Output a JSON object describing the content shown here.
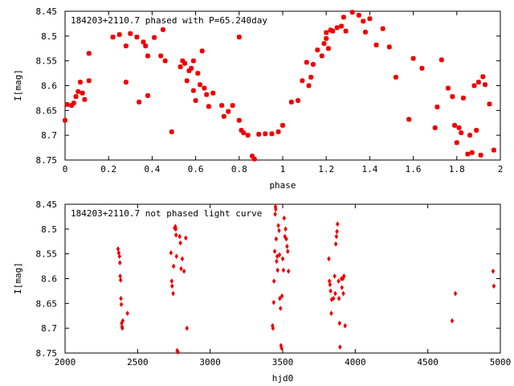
{
  "chart_data": [
    {
      "type": "scatter",
      "title": "184203+2110.7 phased with P=65.240day",
      "xlabel": "phase",
      "ylabel": "I[mag]",
      "xlim": [
        0,
        2
      ],
      "ylim": [
        8.45,
        8.75
      ],
      "y_inverted": true,
      "grid": false,
      "marker_color": "#ee0000",
      "xticks": [
        {
          "v": 0,
          "label": "0"
        },
        {
          "v": 0.2,
          "label": "0.2"
        },
        {
          "v": 0.4,
          "label": "0.4"
        },
        {
          "v": 0.6,
          "label": "0.6"
        },
        {
          "v": 0.8,
          "label": "0.8"
        },
        {
          "v": 1,
          "label": "1"
        },
        {
          "v": 1.2,
          "label": "1.2"
        },
        {
          "v": 1.4,
          "label": "1.4"
        },
        {
          "v": 1.6,
          "label": "1.6"
        },
        {
          "v": 1.8,
          "label": "1.8"
        },
        {
          "v": 2,
          "label": "2"
        }
      ],
      "yticks": [
        {
          "v": 8.45,
          "label": "8.45"
        },
        {
          "v": 8.5,
          "label": "8.5"
        },
        {
          "v": 8.55,
          "label": "8.55"
        },
        {
          "v": 8.6,
          "label": "8.6"
        },
        {
          "v": 8.65,
          "label": "8.65"
        },
        {
          "v": 8.7,
          "label": "8.7"
        },
        {
          "v": 8.75,
          "label": "8.75"
        }
      ],
      "points": [
        [
          0.0,
          8.67
        ],
        [
          0.01,
          8.638
        ],
        [
          0.03,
          8.64
        ],
        [
          0.04,
          8.635
        ],
        [
          0.05,
          8.622
        ],
        [
          0.06,
          8.612
        ],
        [
          0.07,
          8.593
        ],
        [
          0.08,
          8.615
        ],
        [
          0.09,
          8.628
        ],
        [
          0.11,
          8.59
        ],
        [
          0.11,
          8.535
        ],
        [
          0.22,
          8.502
        ],
        [
          0.25,
          8.497
        ],
        [
          0.28,
          8.52
        ],
        [
          0.28,
          8.593
        ],
        [
          0.3,
          8.495
        ],
        [
          0.33,
          8.502
        ],
        [
          0.34,
          8.633
        ],
        [
          0.36,
          8.512
        ],
        [
          0.37,
          8.52
        ],
        [
          0.38,
          8.62
        ],
        [
          0.38,
          8.54
        ],
        [
          0.41,
          8.503
        ],
        [
          0.44,
          8.54
        ],
        [
          0.45,
          8.487
        ],
        [
          0.46,
          8.55
        ],
        [
          0.49,
          8.693
        ],
        [
          0.53,
          8.562
        ],
        [
          0.54,
          8.55
        ],
        [
          0.55,
          8.555
        ],
        [
          0.56,
          8.59
        ],
        [
          0.57,
          8.57
        ],
        [
          0.58,
          8.565
        ],
        [
          0.59,
          8.55
        ],
        [
          0.59,
          8.61
        ],
        [
          0.6,
          8.63
        ],
        [
          0.61,
          8.575
        ],
        [
          0.62,
          8.598
        ],
        [
          0.63,
          8.53
        ],
        [
          0.64,
          8.605
        ],
        [
          0.65,
          8.618
        ],
        [
          0.66,
          8.642
        ],
        [
          0.68,
          8.615
        ],
        [
          0.72,
          8.64
        ],
        [
          0.73,
          8.662
        ],
        [
          0.75,
          8.652
        ],
        [
          0.77,
          8.64
        ],
        [
          0.8,
          8.67
        ],
        [
          0.8,
          8.502
        ],
        [
          0.81,
          8.69
        ],
        [
          0.82,
          8.695
        ],
        [
          0.84,
          8.7
        ],
        [
          0.86,
          8.742
        ],
        [
          0.87,
          8.748
        ],
        [
          0.89,
          8.698
        ],
        [
          0.92,
          8.697
        ],
        [
          0.95,
          8.697
        ],
        [
          0.98,
          8.693
        ],
        [
          1.0,
          8.68
        ],
        [
          1.04,
          8.633
        ],
        [
          1.07,
          8.63
        ],
        [
          1.09,
          8.59
        ],
        [
          1.11,
          8.553
        ],
        [
          1.12,
          8.6
        ],
        [
          1.13,
          8.583
        ],
        [
          1.14,
          8.557
        ],
        [
          1.16,
          8.528
        ],
        [
          1.18,
          8.54
        ],
        [
          1.19,
          8.515
        ],
        [
          1.2,
          8.493
        ],
        [
          1.2,
          8.505
        ],
        [
          1.21,
          8.525
        ],
        [
          1.22,
          8.488
        ],
        [
          1.23,
          8.49
        ],
        [
          1.25,
          8.483
        ],
        [
          1.27,
          8.48
        ],
        [
          1.28,
          8.462
        ],
        [
          1.29,
          8.49
        ],
        [
          1.32,
          8.452
        ],
        [
          1.35,
          8.458
        ],
        [
          1.37,
          8.47
        ],
        [
          1.38,
          8.492
        ],
        [
          1.4,
          8.465
        ],
        [
          1.43,
          8.518
        ],
        [
          1.46,
          8.485
        ],
        [
          1.49,
          8.522
        ],
        [
          1.52,
          8.583
        ],
        [
          1.58,
          8.668
        ],
        [
          1.6,
          8.545
        ],
        [
          1.64,
          8.565
        ],
        [
          1.7,
          8.685
        ],
        [
          1.71,
          8.643
        ],
        [
          1.73,
          8.548
        ],
        [
          1.76,
          8.605
        ],
        [
          1.78,
          8.622
        ],
        [
          1.79,
          8.68
        ],
        [
          1.8,
          8.715
        ],
        [
          1.81,
          8.685
        ],
        [
          1.82,
          8.695
        ],
        [
          1.83,
          8.625
        ],
        [
          1.85,
          8.738
        ],
        [
          1.86,
          8.7
        ],
        [
          1.87,
          8.735
        ],
        [
          1.88,
          8.6
        ],
        [
          1.89,
          8.69
        ],
        [
          1.9,
          8.593
        ],
        [
          1.91,
          8.74
        ],
        [
          1.92,
          8.582
        ],
        [
          1.93,
          8.598
        ],
        [
          1.95,
          8.637
        ],
        [
          1.97,
          8.73
        ]
      ]
    },
    {
      "type": "scatter",
      "title": "184203+2110.7 not phased light curve",
      "xlabel": "hjd0",
      "ylabel": "I[mag]",
      "xlim": [
        2000,
        5000
      ],
      "ylim": [
        8.45,
        8.75
      ],
      "y_inverted": true,
      "grid": false,
      "marker_color": "#ee0000",
      "xticks": [
        {
          "v": 2000,
          "label": "2000"
        },
        {
          "v": 2500,
          "label": "2500"
        },
        {
          "v": 3000,
          "label": "3000"
        },
        {
          "v": 3500,
          "label": "3500"
        },
        {
          "v": 4000,
          "label": "4000"
        },
        {
          "v": 4500,
          "label": "4500"
        },
        {
          "v": 5000,
          "label": "5000"
        }
      ],
      "yticks": [
        {
          "v": 8.45,
          "label": "8.45"
        },
        {
          "v": 8.5,
          "label": "8.5"
        },
        {
          "v": 8.55,
          "label": "8.55"
        },
        {
          "v": 8.6,
          "label": "8.6"
        },
        {
          "v": 8.65,
          "label": "8.65"
        },
        {
          "v": 8.7,
          "label": "8.7"
        },
        {
          "v": 8.75,
          "label": "8.75"
        }
      ],
      "points": [
        [
          2365,
          8.54
        ],
        [
          2370,
          8.548
        ],
        [
          2375,
          8.555
        ],
        [
          2378,
          8.568
        ],
        [
          2380,
          8.595
        ],
        [
          2383,
          8.603
        ],
        [
          2385,
          8.64
        ],
        [
          2388,
          8.652
        ],
        [
          2390,
          8.69
        ],
        [
          2393,
          8.697
        ],
        [
          2395,
          8.7
        ],
        [
          2398,
          8.685
        ],
        [
          2430,
          8.67
        ],
        [
          2730,
          8.548
        ],
        [
          2735,
          8.605
        ],
        [
          2738,
          8.615
        ],
        [
          2745,
          8.63
        ],
        [
          2748,
          8.575
        ],
        [
          2755,
          8.498
        ],
        [
          2760,
          8.495
        ],
        [
          2763,
          8.5
        ],
        [
          2765,
          8.512
        ],
        [
          2768,
          8.555
        ],
        [
          2773,
          8.745
        ],
        [
          2778,
          8.748
        ],
        [
          2790,
          8.515
        ],
        [
          2795,
          8.528
        ],
        [
          2800,
          8.58
        ],
        [
          2808,
          8.56
        ],
        [
          2820,
          8.585
        ],
        [
          2832,
          8.518
        ],
        [
          2840,
          8.7
        ],
        [
          3430,
          8.695
        ],
        [
          3433,
          8.7
        ],
        [
          3438,
          8.648
        ],
        [
          3440,
          8.605
        ],
        [
          3445,
          8.545
        ],
        [
          3448,
          8.47
        ],
        [
          3450,
          8.455
        ],
        [
          3452,
          8.46
        ],
        [
          3455,
          8.52
        ],
        [
          3458,
          8.565
        ],
        [
          3462,
          8.555
        ],
        [
          3465,
          8.583
        ],
        [
          3470,
          8.493
        ],
        [
          3475,
          8.503
        ],
        [
          3478,
          8.552
        ],
        [
          3480,
          8.64
        ],
        [
          3485,
          8.66
        ],
        [
          3488,
          8.735
        ],
        [
          3492,
          8.74
        ],
        [
          3495,
          8.635
        ],
        [
          3500,
          8.56
        ],
        [
          3505,
          8.583
        ],
        [
          3510,
          8.478
        ],
        [
          3515,
          8.515
        ],
        [
          3520,
          8.5
        ],
        [
          3525,
          8.52
        ],
        [
          3530,
          8.535
        ],
        [
          3535,
          8.545
        ],
        [
          3540,
          8.585
        ],
        [
          3818,
          8.56
        ],
        [
          3822,
          8.605
        ],
        [
          3826,
          8.612
        ],
        [
          3830,
          8.625
        ],
        [
          3835,
          8.67
        ],
        [
          3838,
          8.642
        ],
        [
          3850,
          8.64
        ],
        [
          3858,
          8.595
        ],
        [
          3862,
          8.63
        ],
        [
          3866,
          8.53
        ],
        [
          3870,
          8.515
        ],
        [
          3874,
          8.505
        ],
        [
          3878,
          8.49
        ],
        [
          3885,
          8.605
        ],
        [
          3888,
          8.64
        ],
        [
          3892,
          8.69
        ],
        [
          3895,
          8.738
        ],
        [
          3905,
          8.6
        ],
        [
          3908,
          8.618
        ],
        [
          3915,
          8.6
        ],
        [
          3918,
          8.63
        ],
        [
          3922,
          8.595
        ],
        [
          3930,
          8.695
        ],
        [
          4668,
          8.685
        ],
        [
          4690,
          8.63
        ],
        [
          4950,
          8.585
        ],
        [
          4955,
          8.615
        ]
      ]
    }
  ]
}
